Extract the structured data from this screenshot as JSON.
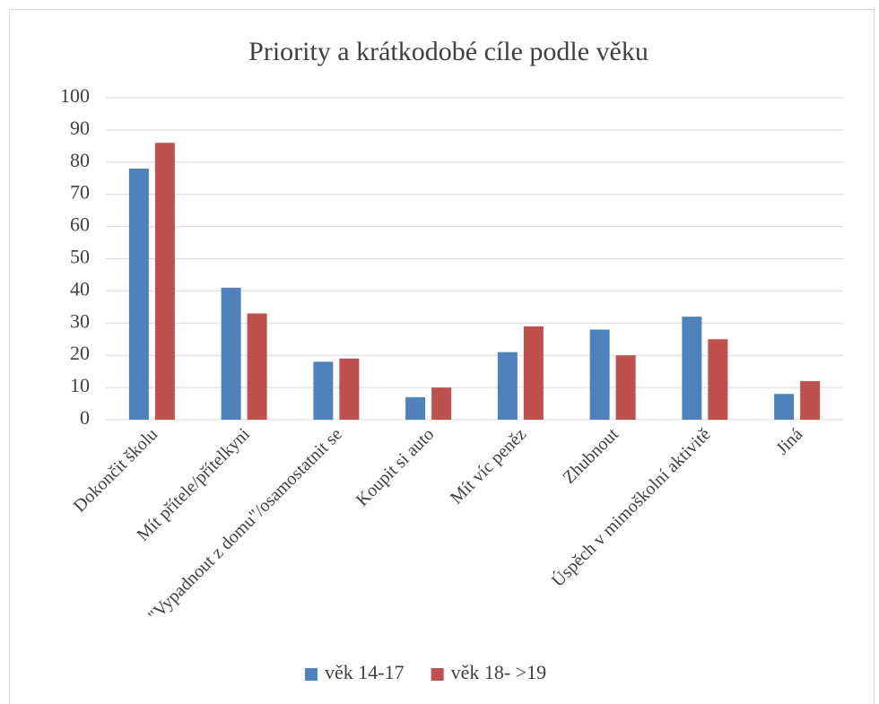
{
  "chart_data": {
    "type": "bar",
    "title": "Priority a krátkodobé cíle podle věku",
    "categories": [
      "Dokončit školu",
      "Mít přítele/přítelkyni",
      "\"Vypadnout z domu\"/osamostatnit se",
      "Koupit si auto",
      "Mít víc peněz",
      "Zhubnout",
      "Úspěch v mimoškolní aktivitě",
      "Jiná"
    ],
    "series": [
      {
        "name": "věk 14-17",
        "color": "#4f81bd",
        "values": [
          78,
          41,
          18,
          7,
          21,
          28,
          32,
          8
        ]
      },
      {
        "name": "věk 18- >19",
        "color": "#c0504d",
        "values": [
          86,
          33,
          19,
          10,
          29,
          20,
          25,
          12
        ]
      }
    ],
    "ylim": [
      0,
      100
    ],
    "yticks": [
      0,
      10,
      20,
      30,
      40,
      50,
      60,
      70,
      80,
      90,
      100
    ],
    "grid": true,
    "legend": "bottom"
  }
}
